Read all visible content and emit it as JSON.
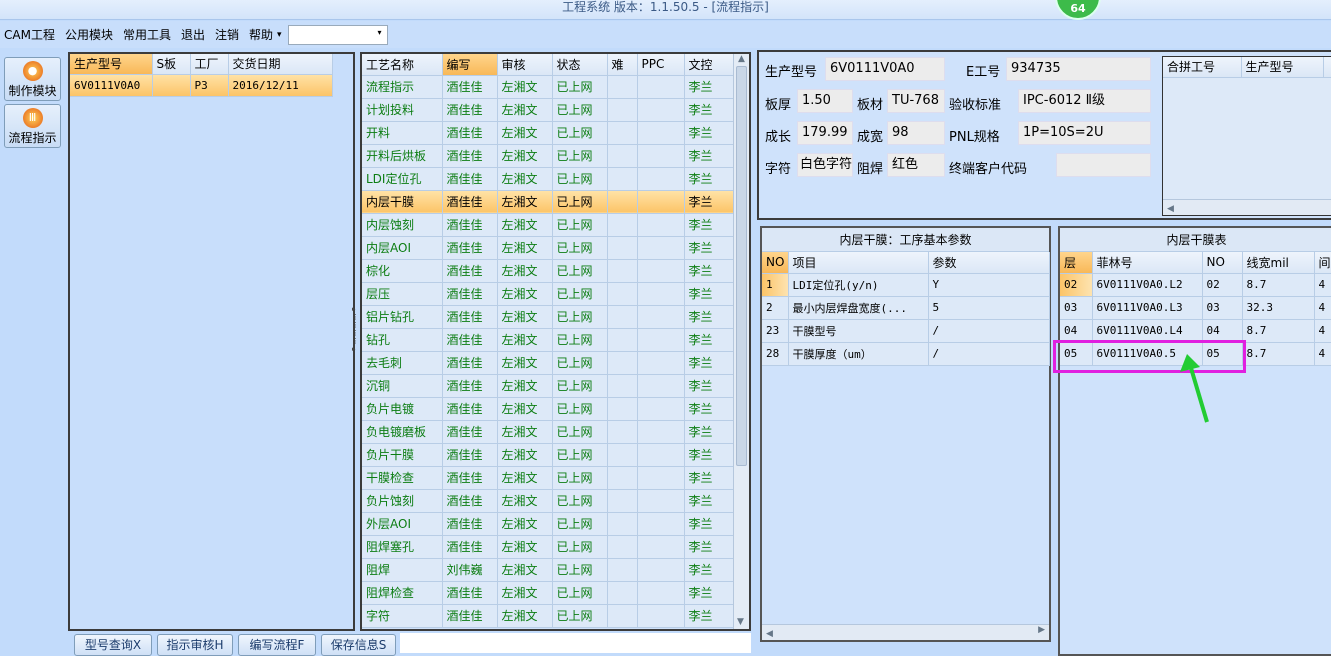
{
  "window": {
    "title": "工程系统   版本：1.1.50.5 - [流程指示]",
    "badge": "64"
  },
  "menu": {
    "items": [
      "CAM工程",
      "公用模块",
      "常用工具",
      "退出",
      "注销",
      "帮助"
    ],
    "dropdown_arrow": "▾",
    "combo_value": ""
  },
  "nav": [
    {
      "label": "制作模块",
      "icon": "fire-icon"
    },
    {
      "label": "流程指示",
      "icon": "flow-icon"
    }
  ],
  "orders": {
    "columns": [
      "生产型号",
      "S板",
      "工厂",
      "交货日期"
    ],
    "rows": [
      [
        "6V0111V0A0",
        "",
        "P3",
        "2016/12/11"
      ]
    ]
  },
  "process": {
    "columns": [
      "工艺名称",
      "编写",
      "审核",
      "状态",
      "难",
      "PPC",
      "文控"
    ],
    "selected_index": 5,
    "rows": [
      [
        "流程指示",
        "酒佳佳",
        "左湘文",
        "已上网",
        "",
        "",
        "李兰"
      ],
      [
        "计划投料",
        "酒佳佳",
        "左湘文",
        "已上网",
        "",
        "",
        "李兰"
      ],
      [
        "开料",
        "酒佳佳",
        "左湘文",
        "已上网",
        "",
        "",
        "李兰"
      ],
      [
        "开料后烘板",
        "酒佳佳",
        "左湘文",
        "已上网",
        "",
        "",
        "李兰"
      ],
      [
        "LDI定位孔",
        "酒佳佳",
        "左湘文",
        "已上网",
        "",
        "",
        "李兰"
      ],
      [
        "内层干膜",
        "酒佳佳",
        "左湘文",
        "已上网",
        "",
        "",
        "李兰"
      ],
      [
        "内层蚀刻",
        "酒佳佳",
        "左湘文",
        "已上网",
        "",
        "",
        "李兰"
      ],
      [
        "内层AOI",
        "酒佳佳",
        "左湘文",
        "已上网",
        "",
        "",
        "李兰"
      ],
      [
        "棕化",
        "酒佳佳",
        "左湘文",
        "已上网",
        "",
        "",
        "李兰"
      ],
      [
        "层压",
        "酒佳佳",
        "左湘文",
        "已上网",
        "",
        "",
        "李兰"
      ],
      [
        "铝片钻孔",
        "酒佳佳",
        "左湘文",
        "已上网",
        "",
        "",
        "李兰"
      ],
      [
        "钻孔",
        "酒佳佳",
        "左湘文",
        "已上网",
        "",
        "",
        "李兰"
      ],
      [
        "去毛刺",
        "酒佳佳",
        "左湘文",
        "已上网",
        "",
        "",
        "李兰"
      ],
      [
        "沉铜",
        "酒佳佳",
        "左湘文",
        "已上网",
        "",
        "",
        "李兰"
      ],
      [
        "负片电镀",
        "酒佳佳",
        "左湘文",
        "已上网",
        "",
        "",
        "李兰"
      ],
      [
        "负电镀磨板",
        "酒佳佳",
        "左湘文",
        "已上网",
        "",
        "",
        "李兰"
      ],
      [
        "负片干膜",
        "酒佳佳",
        "左湘文",
        "已上网",
        "",
        "",
        "李兰"
      ],
      [
        "干膜检查",
        "酒佳佳",
        "左湘文",
        "已上网",
        "",
        "",
        "李兰"
      ],
      [
        "负片蚀刻",
        "酒佳佳",
        "左湘文",
        "已上网",
        "",
        "",
        "李兰"
      ],
      [
        "外层AOI",
        "酒佳佳",
        "左湘文",
        "已上网",
        "",
        "",
        "李兰"
      ],
      [
        "阻焊塞孔",
        "酒佳佳",
        "左湘文",
        "已上网",
        "",
        "",
        "李兰"
      ],
      [
        "阻焊",
        "刘伟巍",
        "左湘文",
        "已上网",
        "",
        "",
        "李兰"
      ],
      [
        "阻焊检查",
        "酒佳佳",
        "左湘文",
        "已上网",
        "",
        "",
        "李兰"
      ],
      [
        "字符",
        "酒佳佳",
        "左湘文",
        "已上网",
        "",
        "",
        "李兰"
      ]
    ]
  },
  "bottom_buttons": [
    "型号查询X",
    "指示审核H",
    "编写流程F",
    "保存信息S"
  ],
  "info": {
    "model_label": "生产型号",
    "model": "6V0111V0A0",
    "e_label": "E工号",
    "e_no": "934735",
    "thick_label": "板厚",
    "thick": "1.50",
    "mat_label": "板材",
    "mat": "TU-768",
    "std_label": "验收标准",
    "std": "IPC-6012 Ⅱ级",
    "len_label": "成长",
    "len": "179.99",
    "wid_label": "成宽",
    "wid": "98",
    "pnl_label": "PNL规格",
    "pnl": "1P=10S=2U",
    "char_label": "字符",
    "char": "白色字符",
    "mask_label": "阻焊",
    "mask": "红色",
    "cust_label": "终端客户代码",
    "cust": ""
  },
  "merge": {
    "columns": [
      "合拼工号",
      "生产型号"
    ]
  },
  "params": {
    "title": "内层干膜：工序基本参数",
    "columns": [
      "NO",
      "项目",
      "参数"
    ],
    "rows": [
      [
        "1",
        "LDI定位孔(y/n)",
        "Y"
      ],
      [
        "2",
        "最小内层焊盘宽度(...",
        "5"
      ],
      [
        "23",
        "干膜型号",
        "/"
      ],
      [
        "28",
        "干膜厚度（um）",
        "/"
      ]
    ]
  },
  "films": {
    "title": "内层干膜表",
    "columns": [
      "层",
      "菲林号",
      "NO",
      "线宽mil",
      "间"
    ],
    "rows": [
      [
        "02",
        "6V0111V0A0.L2",
        "02",
        "8.7",
        "4"
      ],
      [
        "03",
        "6V0111V0A0.L3",
        "03",
        "32.3",
        "4"
      ],
      [
        "04",
        "6V0111V0A0.L4",
        "04",
        "8.7",
        "4"
      ],
      [
        "05",
        "6V0111V0A0.5",
        "05",
        "8.7",
        "4"
      ]
    ]
  },
  "colors": {
    "highlight_box": "#e020e0",
    "arrow": "#22cc33",
    "green_text": "#0c7d12"
  }
}
